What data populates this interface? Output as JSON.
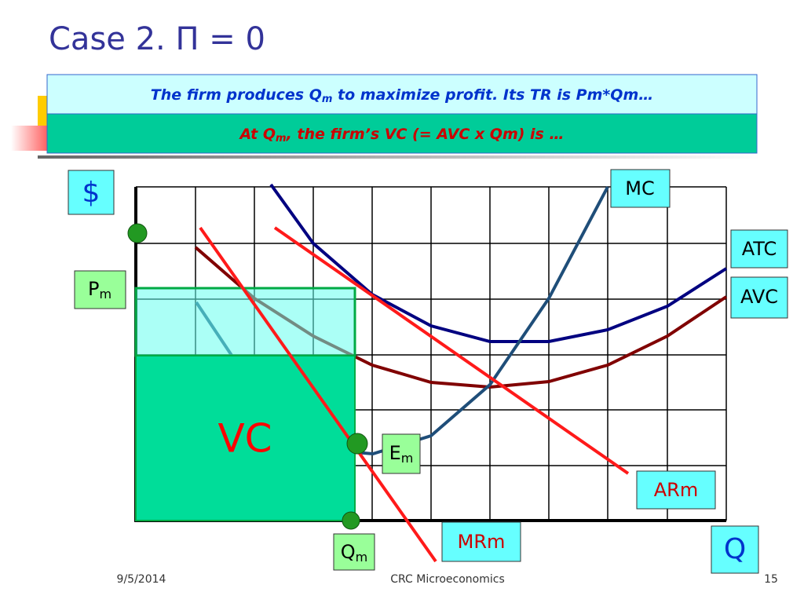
{
  "header": {
    "title": "Case 2. Π = 0"
  },
  "banners": [
    {
      "parts": [
        "The firm produces Q",
        "m",
        " to maximize profit. Its TR is Pm*Qm…"
      ]
    },
    {
      "parts": [
        "At Q",
        "m",
        ", the firm’s VC  (= AVC x Qm) is …"
      ]
    }
  ],
  "labels": {
    "dollar": "$",
    "mc": "MC",
    "atc": "ATC",
    "avc": "AVC",
    "p": [
      "P",
      "m"
    ],
    "vc": "VC",
    "e": [
      "E",
      "m"
    ],
    "arm": "ARm",
    "mrm": "MRm",
    "q_m": [
      "Q",
      "m"
    ],
    "q": "Q"
  },
  "footer": {
    "date": "9/5/2014",
    "center": "CRC Microeconomics",
    "page": "15"
  }
}
